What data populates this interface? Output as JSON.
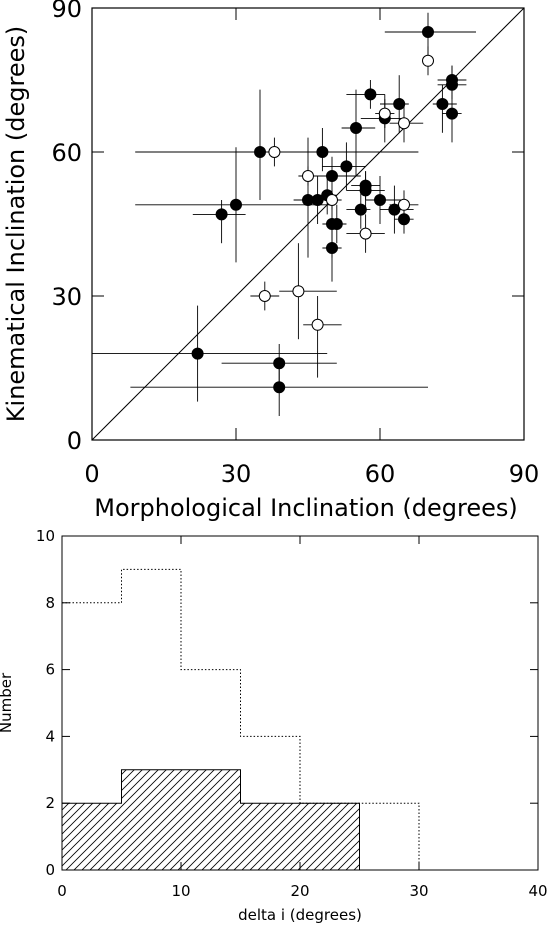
{
  "chart_data": [
    {
      "type": "scatter",
      "xlabel": "Morphological Inclination (degrees)",
      "ylabel": "Kinematical Inclination (degrees)",
      "xlim": [
        0,
        90
      ],
      "ylim": [
        0,
        90
      ],
      "xticks": [
        0,
        30,
        60,
        90
      ],
      "yticks": [
        0,
        30,
        60,
        90
      ],
      "grid": false,
      "reference_line": {
        "x": [
          0,
          90
        ],
        "y": [
          0,
          90
        ]
      },
      "series": [
        {
          "marker": "filled-circle",
          "points": [
            {
              "x": 70,
              "y": 85,
              "xerr": [
                9,
                10
              ],
              "yerr": [
                6,
                4
              ]
            },
            {
              "x": 75,
              "y": 75,
              "xerr": [
                3,
                3
              ],
              "yerr": [
                3,
                3
              ]
            },
            {
              "x": 75,
              "y": 74,
              "xerr": [
                3,
                3
              ],
              "yerr": [
                3,
                4
              ]
            },
            {
              "x": 73,
              "y": 70,
              "xerr": [
                2,
                3
              ],
              "yerr": [
                6,
                4
              ]
            },
            {
              "x": 75,
              "y": 68,
              "xerr": [
                2,
                2
              ],
              "yerr": [
                6,
                4
              ]
            },
            {
              "x": 58,
              "y": 72,
              "xerr": [
                5,
                3
              ],
              "yerr": [
                3,
                3
              ]
            },
            {
              "x": 64,
              "y": 70,
              "xerr": [
                4,
                2
              ],
              "yerr": [
                6,
                6
              ]
            },
            {
              "x": 61,
              "y": 67,
              "xerr": [
                5,
                4
              ],
              "yerr": [
                5,
                5
              ]
            },
            {
              "x": 55,
              "y": 65,
              "xerr": [
                3,
                4
              ],
              "yerr": [
                10,
                8
              ]
            },
            {
              "x": 35,
              "y": 60,
              "xerr": [
                26,
                13
              ],
              "yerr": [
                10,
                13
              ]
            },
            {
              "x": 48,
              "y": 60,
              "xerr": [
                10,
                20
              ],
              "yerr": [
                4,
                5
              ]
            },
            {
              "x": 53,
              "y": 57,
              "xerr": [
                5,
                4
              ],
              "yerr": [
                5,
                5
              ]
            },
            {
              "x": 50,
              "y": 55,
              "xerr": [
                5,
                6
              ],
              "yerr": [
                4,
                4
              ]
            },
            {
              "x": 57,
              "y": 53,
              "xerr": [
                3,
                3
              ],
              "yerr": [
                3,
                3
              ]
            },
            {
              "x": 57,
              "y": 52,
              "xerr": [
                4,
                4
              ],
              "yerr": [
                4,
                4
              ]
            },
            {
              "x": 30,
              "y": 49,
              "xerr": [
                21,
                20
              ],
              "yerr": [
                12,
                12
              ]
            },
            {
              "x": 49,
              "y": 51,
              "xerr": [
                2,
                2
              ],
              "yerr": [
                4,
                4
              ]
            },
            {
              "x": 45,
              "y": 50,
              "xerr": [
                3,
                3
              ],
              "yerr": [
                12,
                13
              ]
            },
            {
              "x": 47,
              "y": 50,
              "xerr": [
                3,
                3
              ],
              "yerr": [
                5,
                5
              ]
            },
            {
              "x": 60,
              "y": 50,
              "xerr": [
                3,
                5
              ],
              "yerr": [
                5,
                5
              ]
            },
            {
              "x": 27,
              "y": 47,
              "xerr": [
                6,
                5
              ],
              "yerr": [
                6,
                3
              ]
            },
            {
              "x": 56,
              "y": 48,
              "xerr": [
                3,
                2
              ],
              "yerr": [
                4,
                4
              ]
            },
            {
              "x": 63,
              "y": 48,
              "xerr": [
                3,
                4
              ],
              "yerr": [
                5,
                5
              ]
            },
            {
              "x": 65,
              "y": 46,
              "xerr": [
                2,
                2
              ],
              "yerr": [
                3,
                3
              ]
            },
            {
              "x": 50,
              "y": 45,
              "xerr": [
                2,
                3
              ],
              "yerr": [
                7,
                7
              ]
            },
            {
              "x": 51,
              "y": 45,
              "xerr": [
                2,
                2
              ],
              "yerr": [
                4,
                4
              ]
            },
            {
              "x": 50,
              "y": 40,
              "xerr": [
                2,
                2
              ],
              "yerr": [
                7,
                5
              ]
            },
            {
              "x": 22,
              "y": 18,
              "xerr": [
                22,
                27
              ],
              "yerr": [
                10,
                10
              ]
            },
            {
              "x": 39,
              "y": 16,
              "xerr": [
                12,
                12
              ],
              "yerr": [
                4,
                4
              ]
            },
            {
              "x": 39,
              "y": 11,
              "xerr": [
                31,
                31
              ],
              "yerr": [
                6,
                6
              ]
            }
          ]
        },
        {
          "marker": "open-circle",
          "points": [
            {
              "x": 70,
              "y": 79,
              "xerr": [
                0,
                0
              ],
              "yerr": [
                3,
                3
              ]
            },
            {
              "x": 61,
              "y": 68,
              "xerr": [
                2,
                2
              ],
              "yerr": [
                3,
                3
              ]
            },
            {
              "x": 65,
              "y": 66,
              "xerr": [
                3,
                4
              ],
              "yerr": [
                4,
                4
              ]
            },
            {
              "x": 38,
              "y": 60,
              "xerr": [
                3,
                3
              ],
              "yerr": [
                3,
                3
              ]
            },
            {
              "x": 45,
              "y": 55,
              "xerr": [
                2,
                2
              ],
              "yerr": [
                2,
                2
              ]
            },
            {
              "x": 50,
              "y": 50,
              "xerr": [
                2,
                2
              ],
              "yerr": [
                2,
                2
              ]
            },
            {
              "x": 65,
              "y": 49,
              "xerr": [
                3,
                3
              ],
              "yerr": [
                3,
                3
              ]
            },
            {
              "x": 57,
              "y": 43,
              "xerr": [
                4,
                4
              ],
              "yerr": [
                4,
                4
              ]
            },
            {
              "x": 36,
              "y": 30,
              "xerr": [
                3,
                3
              ],
              "yerr": [
                3,
                3
              ]
            },
            {
              "x": 43,
              "y": 31,
              "xerr": [
                4,
                8
              ],
              "yerr": [
                10,
                10
              ]
            },
            {
              "x": 47,
              "y": 24,
              "xerr": [
                3,
                5
              ],
              "yerr": [
                11,
                6
              ]
            }
          ]
        }
      ]
    },
    {
      "type": "bar",
      "xlabel": "delta i (degrees)",
      "ylabel": "Number",
      "xlim": [
        0,
        40
      ],
      "ylim": [
        0,
        10
      ],
      "xticks": [
        0,
        10,
        20,
        30,
        40
      ],
      "yticks": [
        0,
        2,
        4,
        6,
        8,
        10
      ],
      "bin_width": 5,
      "series": [
        {
          "style": "dotted-outline",
          "bins": [
            0,
            5,
            10,
            15,
            20,
            25
          ],
          "values": [
            8,
            9,
            6,
            4,
            2,
            2
          ]
        },
        {
          "style": "hatched",
          "bins": [
            0,
            5,
            10,
            15,
            20
          ],
          "values": [
            2,
            3,
            3,
            2,
            2
          ]
        }
      ]
    }
  ]
}
